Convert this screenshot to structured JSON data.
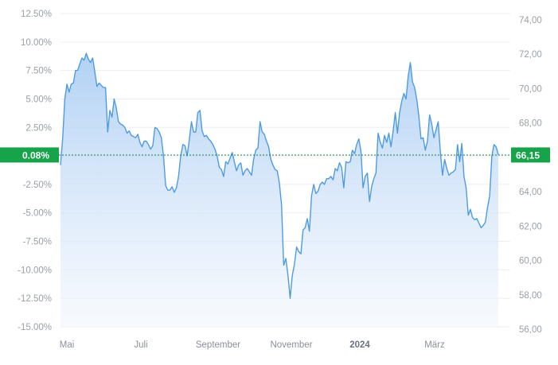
{
  "chart_data": {
    "type": "area",
    "x_ticks": [
      "Mai",
      "Juli",
      "September",
      "November",
      "2024",
      "März"
    ],
    "x_ticks_bold": [
      "2024"
    ],
    "y_left": {
      "ticks": [
        "12.50%",
        "10.00%",
        "7.50%",
        "5.00%",
        "2.50%",
        "0.00%",
        "-2.50%",
        "-5.00%",
        "-7.50%",
        "-10.00%",
        "-12.50%",
        "-15.00%"
      ],
      "ylim": [
        -15.0,
        12.5
      ]
    },
    "y_right": {
      "ticks": [
        "74,00",
        "72,00",
        "70,00",
        "68,00",
        "66,00",
        "64,00",
        "62,00",
        "60,00",
        "58,00",
        "56,00"
      ],
      "ylim": [
        56.0,
        74.0
      ]
    },
    "current": {
      "percent_label": "0.08%",
      "price_label": "66,15",
      "percent": 0.08
    },
    "grid": true,
    "colors": {
      "line": "#4f9be3",
      "fill_top": "#a9ccf3",
      "fill_bottom": "#f2f7fd",
      "badge": "#16a34a",
      "reference_line": "#15803d"
    },
    "series": [
      {
        "values": [
          -0.8,
          1.5,
          5.0,
          6.3,
          5.6,
          6.3,
          6.4,
          7.5,
          7.5,
          8.1,
          8.6,
          8.4,
          9.0,
          8.5,
          8.2,
          8.6,
          7.4,
          6.1,
          6.4,
          6.2,
          6.0,
          6.0,
          2.1,
          4.0,
          3.4,
          5.0,
          4.2,
          3.0,
          2.8,
          2.7,
          2.5,
          2.0,
          2.2,
          1.8,
          1.7,
          1.6,
          1.9,
          1.2,
          0.8,
          1.3,
          1.3,
          1.0,
          0.6,
          0.9,
          2.5,
          2.4,
          2.1,
          1.6,
          0.0,
          -2.6,
          -3.0,
          -3.0,
          -2.7,
          -3.2,
          -2.8,
          -1.8,
          0.0,
          1.0,
          0.9,
          0.0,
          1.4,
          3.0,
          2.1,
          2.1,
          3.8,
          4.0,
          2.2,
          1.7,
          1.8,
          1.5,
          1.3,
          1.0,
          0.6,
          0.0,
          -1.0,
          -1.2,
          -1.8,
          -0.5,
          -0.7,
          -0.2,
          0.3,
          -0.5,
          -1.3,
          -0.8,
          -0.6,
          -1.7,
          -1.3,
          -1.1,
          -1.4,
          -1.7,
          -0.3,
          0.5,
          0.7,
          3.0,
          2.1,
          1.9,
          1.3,
          0.8,
          -0.3,
          -0.8,
          -1.2,
          -1.3,
          -2.4,
          -4.3,
          -9.6,
          -9.0,
          -10.5,
          -12.5,
          -10.5,
          -9.5,
          -8.0,
          -8.4,
          -8.6,
          -6.5,
          -6.3,
          -5.5,
          -6.6,
          -3.5,
          -2.5,
          -3.3,
          -3.1,
          -2.5,
          -2.3,
          -2.5,
          -2.0,
          -2.0,
          -1.8,
          -2.1,
          -1.1,
          -1.3,
          -0.6,
          -1.0,
          -2.8,
          -0.5,
          -0.6,
          -0.5,
          0.5,
          0.2,
          1.0,
          1.5,
          0.4,
          -2.8,
          -1.8,
          -1.5,
          -4.0,
          -2.7,
          -2.0,
          -1.5,
          2.0,
          1.2,
          0.7,
          1.8,
          1.2,
          2.0,
          0.8,
          2.2,
          3.8,
          2.0,
          3.8,
          4.8,
          5.5,
          5.0,
          7.0,
          8.2,
          6.5,
          6.0,
          5.0,
          3.5,
          1.5,
          1.6,
          0.5,
          1.3,
          3.6,
          2.8,
          1.6,
          2.3,
          3.0,
          0.4,
          -1.7,
          -0.3,
          -1.1,
          -1.7,
          -1.5,
          -1.4,
          -1.2,
          1.0,
          -0.5,
          1.1,
          -1.8,
          -2.8,
          -5.2,
          -4.7,
          -5.4,
          -5.6,
          -5.5,
          -5.9,
          -6.3,
          -6.1,
          -5.8,
          -4.5,
          -3.5,
          0.0,
          1.0,
          0.8,
          0.1
        ]
      }
    ]
  }
}
